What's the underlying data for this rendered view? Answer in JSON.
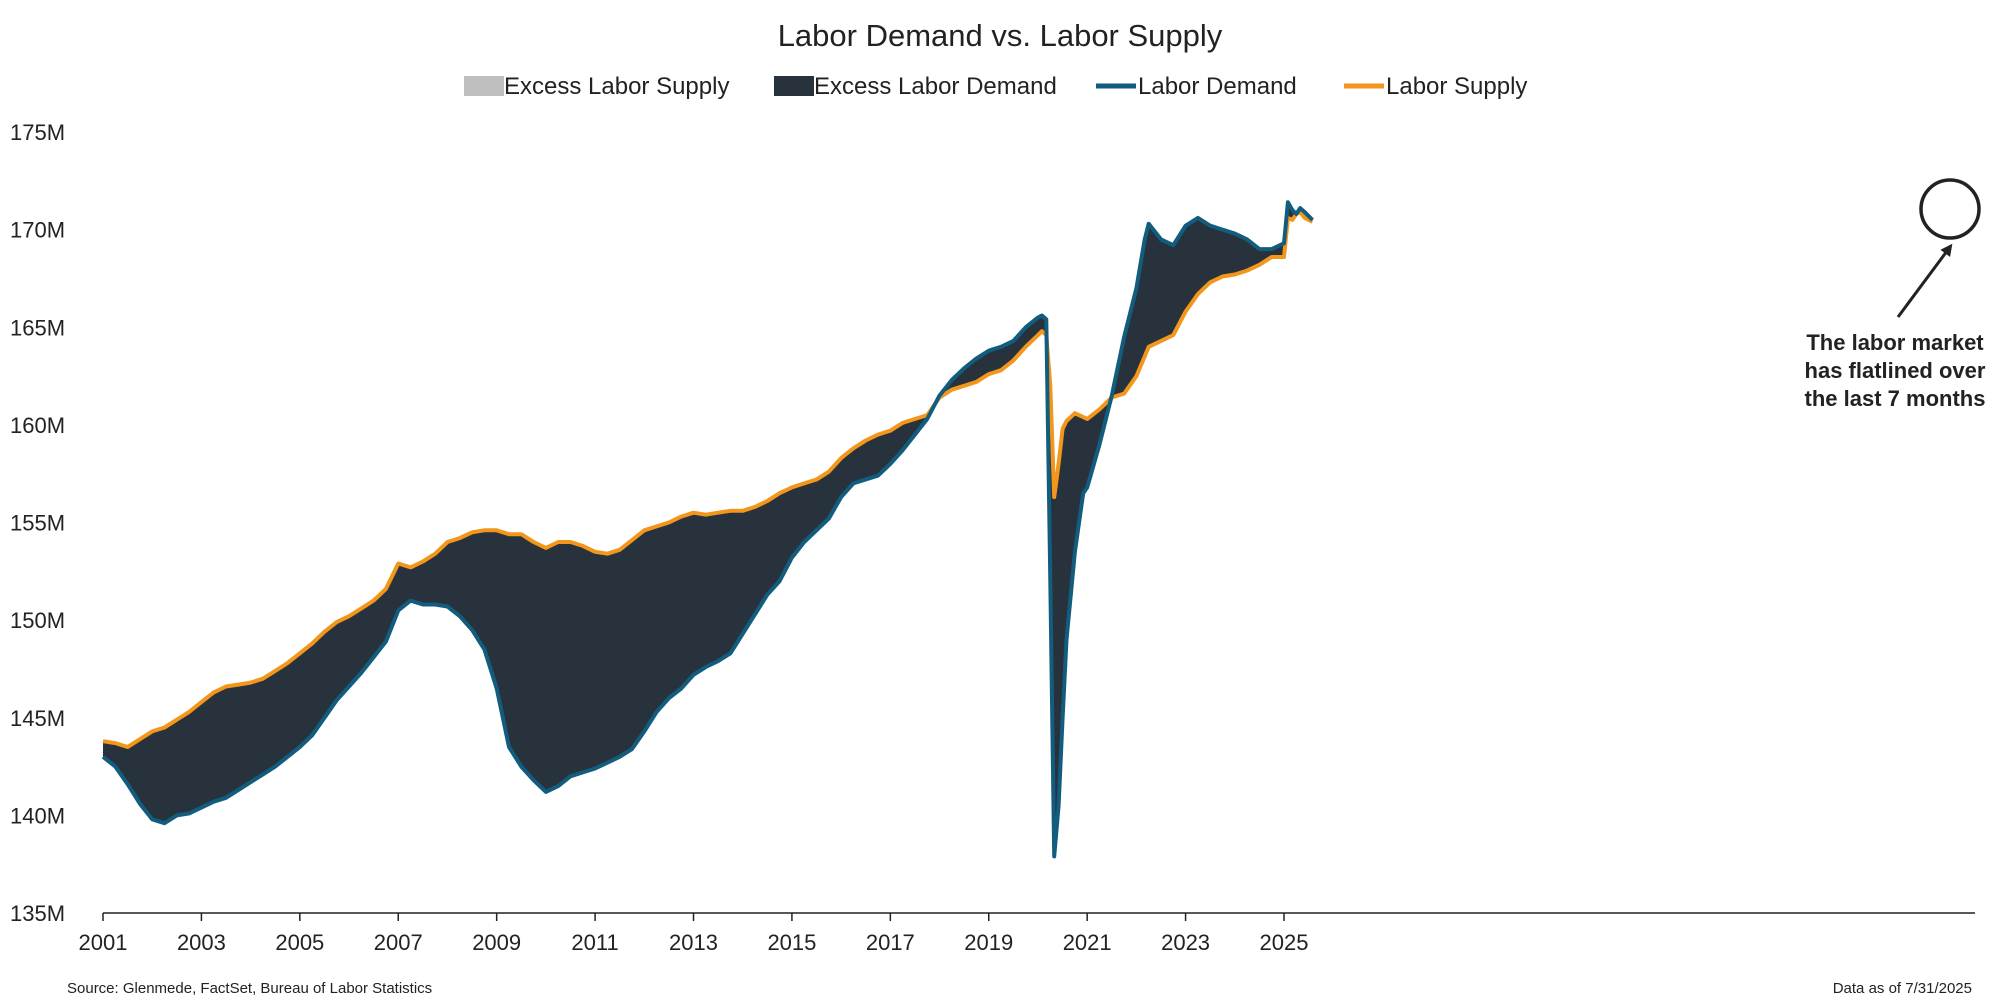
{
  "chart_data": {
    "type": "area",
    "title": "Labor Demand vs. Labor Supply",
    "xlabel": "",
    "ylabel": "",
    "xlim": [
      2001.0,
      2025.65
    ],
    "ylim": [
      135,
      175
    ],
    "y_ticks": [
      135,
      140,
      145,
      150,
      155,
      160,
      165,
      170,
      175
    ],
    "y_tick_labels": [
      "135M",
      "140M",
      "145M",
      "150M",
      "155M",
      "160M",
      "165M",
      "170M",
      "175M"
    ],
    "x_ticks": [
      2001,
      2003,
      2005,
      2007,
      2009,
      2011,
      2013,
      2015,
      2017,
      2019,
      2021,
      2023,
      2025
    ],
    "x_tick_labels": [
      "2001",
      "2003",
      "2005",
      "2007",
      "2009",
      "2011",
      "2013",
      "2015",
      "2017",
      "2019",
      "2021",
      "2023",
      "2025"
    ],
    "legend_position": "top-center",
    "legend": [
      {
        "label": "Excess Labor Supply",
        "kind": "area",
        "color": "#bfbfbf"
      },
      {
        "label": "Excess Labor Demand",
        "kind": "area",
        "color": "#27323d"
      },
      {
        "label": "Labor Demand",
        "kind": "line",
        "color": "#125d7e"
      },
      {
        "label": "Labor Supply",
        "kind": "line",
        "color": "#f3961c"
      }
    ],
    "series": [
      {
        "name": "Labor Demand",
        "color": "#125d7e",
        "points": [
          [
            2001.0,
            143.0
          ],
          [
            2001.25,
            142.5
          ],
          [
            2001.5,
            141.6
          ],
          [
            2001.75,
            140.6
          ],
          [
            2002.0,
            139.8
          ],
          [
            2002.25,
            139.6
          ],
          [
            2002.5,
            140.0
          ],
          [
            2002.75,
            140.1
          ],
          [
            2003.0,
            140.4
          ],
          [
            2003.25,
            140.7
          ],
          [
            2003.5,
            140.9
          ],
          [
            2003.75,
            141.3
          ],
          [
            2004.0,
            141.7
          ],
          [
            2004.25,
            142.1
          ],
          [
            2004.5,
            142.5
          ],
          [
            2004.75,
            143.0
          ],
          [
            2005.0,
            143.5
          ],
          [
            2005.25,
            144.1
          ],
          [
            2005.5,
            145.0
          ],
          [
            2005.75,
            145.9
          ],
          [
            2006.0,
            146.6
          ],
          [
            2006.25,
            147.3
          ],
          [
            2006.5,
            148.1
          ],
          [
            2006.75,
            148.9
          ],
          [
            2007.0,
            150.5
          ],
          [
            2007.25,
            151.0
          ],
          [
            2007.5,
            150.8
          ],
          [
            2007.75,
            150.8
          ],
          [
            2008.0,
            150.7
          ],
          [
            2008.25,
            150.2
          ],
          [
            2008.5,
            149.5
          ],
          [
            2008.75,
            148.5
          ],
          [
            2009.0,
            146.5
          ],
          [
            2009.25,
            143.5
          ],
          [
            2009.5,
            142.5
          ],
          [
            2009.75,
            141.8
          ],
          [
            2010.0,
            141.2
          ],
          [
            2010.25,
            141.5
          ],
          [
            2010.5,
            142.0
          ],
          [
            2010.75,
            142.2
          ],
          [
            2011.0,
            142.4
          ],
          [
            2011.25,
            142.7
          ],
          [
            2011.5,
            143.0
          ],
          [
            2011.75,
            143.4
          ],
          [
            2012.0,
            144.3
          ],
          [
            2012.25,
            145.3
          ],
          [
            2012.5,
            146.0
          ],
          [
            2012.75,
            146.5
          ],
          [
            2013.0,
            147.2
          ],
          [
            2013.25,
            147.6
          ],
          [
            2013.5,
            147.9
          ],
          [
            2013.75,
            148.3
          ],
          [
            2014.0,
            149.3
          ],
          [
            2014.25,
            150.3
          ],
          [
            2014.5,
            151.3
          ],
          [
            2014.75,
            152.0
          ],
          [
            2015.0,
            153.2
          ],
          [
            2015.25,
            154.0
          ],
          [
            2015.5,
            154.6
          ],
          [
            2015.75,
            155.2
          ],
          [
            2016.0,
            156.3
          ],
          [
            2016.25,
            157.0
          ],
          [
            2016.5,
            157.2
          ],
          [
            2016.75,
            157.4
          ],
          [
            2017.0,
            158.0
          ],
          [
            2017.25,
            158.7
          ],
          [
            2017.5,
            159.5
          ],
          [
            2017.75,
            160.3
          ],
          [
            2018.0,
            161.5
          ],
          [
            2018.25,
            162.3
          ],
          [
            2018.5,
            162.9
          ],
          [
            2018.75,
            163.4
          ],
          [
            2019.0,
            163.8
          ],
          [
            2019.25,
            164.0
          ],
          [
            2019.5,
            164.3
          ],
          [
            2019.75,
            165.0
          ],
          [
            2020.0,
            165.5
          ],
          [
            2020.08,
            165.6
          ],
          [
            2020.17,
            165.4
          ],
          [
            2020.25,
            152.0
          ],
          [
            2020.33,
            137.9
          ],
          [
            2020.42,
            140.5
          ],
          [
            2020.5,
            145.0
          ],
          [
            2020.58,
            149.0
          ],
          [
            2020.75,
            153.5
          ],
          [
            2020.92,
            156.5
          ],
          [
            2021.0,
            156.8
          ],
          [
            2021.25,
            159.0
          ],
          [
            2021.5,
            161.5
          ],
          [
            2021.75,
            164.5
          ],
          [
            2022.0,
            167.0
          ],
          [
            2022.17,
            169.5
          ],
          [
            2022.25,
            170.3
          ],
          [
            2022.5,
            169.5
          ],
          [
            2022.75,
            169.2
          ],
          [
            2023.0,
            170.2
          ],
          [
            2023.25,
            170.6
          ],
          [
            2023.5,
            170.2
          ],
          [
            2023.75,
            170.0
          ],
          [
            2024.0,
            169.8
          ],
          [
            2024.25,
            169.5
          ],
          [
            2024.5,
            169.0
          ],
          [
            2024.75,
            169.0
          ],
          [
            2025.0,
            169.3
          ],
          [
            2025.08,
            171.4
          ],
          [
            2025.17,
            171.0
          ],
          [
            2025.25,
            170.8
          ],
          [
            2025.33,
            171.1
          ],
          [
            2025.42,
            170.9
          ],
          [
            2025.5,
            170.7
          ],
          [
            2025.58,
            170.5
          ]
        ]
      },
      {
        "name": "Labor Supply",
        "color": "#f3961c",
        "points": [
          [
            2001.0,
            143.8
          ],
          [
            2001.25,
            143.7
          ],
          [
            2001.5,
            143.5
          ],
          [
            2001.75,
            143.9
          ],
          [
            2002.0,
            144.3
          ],
          [
            2002.25,
            144.5
          ],
          [
            2002.5,
            144.9
          ],
          [
            2002.75,
            145.3
          ],
          [
            2003.0,
            145.8
          ],
          [
            2003.25,
            146.3
          ],
          [
            2003.5,
            146.6
          ],
          [
            2003.75,
            146.7
          ],
          [
            2004.0,
            146.8
          ],
          [
            2004.25,
            147.0
          ],
          [
            2004.5,
            147.4
          ],
          [
            2004.75,
            147.8
          ],
          [
            2005.0,
            148.3
          ],
          [
            2005.25,
            148.8
          ],
          [
            2005.5,
            149.4
          ],
          [
            2005.75,
            149.9
          ],
          [
            2006.0,
            150.2
          ],
          [
            2006.25,
            150.6
          ],
          [
            2006.5,
            151.0
          ],
          [
            2006.75,
            151.6
          ],
          [
            2007.0,
            152.9
          ],
          [
            2007.25,
            152.7
          ],
          [
            2007.5,
            153.0
          ],
          [
            2007.75,
            153.4
          ],
          [
            2008.0,
            154.0
          ],
          [
            2008.25,
            154.2
          ],
          [
            2008.5,
            154.5
          ],
          [
            2008.75,
            154.6
          ],
          [
            2009.0,
            154.6
          ],
          [
            2009.25,
            154.4
          ],
          [
            2009.5,
            154.4
          ],
          [
            2009.75,
            154.0
          ],
          [
            2010.0,
            153.7
          ],
          [
            2010.25,
            154.0
          ],
          [
            2010.5,
            154.0
          ],
          [
            2010.75,
            153.8
          ],
          [
            2011.0,
            153.5
          ],
          [
            2011.25,
            153.4
          ],
          [
            2011.5,
            153.6
          ],
          [
            2011.75,
            154.1
          ],
          [
            2012.0,
            154.6
          ],
          [
            2012.25,
            154.8
          ],
          [
            2012.5,
            155.0
          ],
          [
            2012.75,
            155.3
          ],
          [
            2013.0,
            155.5
          ],
          [
            2013.25,
            155.4
          ],
          [
            2013.5,
            155.5
          ],
          [
            2013.75,
            155.6
          ],
          [
            2014.0,
            155.6
          ],
          [
            2014.25,
            155.8
          ],
          [
            2014.5,
            156.1
          ],
          [
            2014.75,
            156.5
          ],
          [
            2015.0,
            156.8
          ],
          [
            2015.25,
            157.0
          ],
          [
            2015.5,
            157.2
          ],
          [
            2015.75,
            157.6
          ],
          [
            2016.0,
            158.3
          ],
          [
            2016.25,
            158.8
          ],
          [
            2016.5,
            159.2
          ],
          [
            2016.75,
            159.5
          ],
          [
            2017.0,
            159.7
          ],
          [
            2017.25,
            160.1
          ],
          [
            2017.5,
            160.3
          ],
          [
            2017.75,
            160.5
          ],
          [
            2018.0,
            161.4
          ],
          [
            2018.25,
            161.8
          ],
          [
            2018.5,
            162.0
          ],
          [
            2018.75,
            162.2
          ],
          [
            2019.0,
            162.6
          ],
          [
            2019.25,
            162.8
          ],
          [
            2019.5,
            163.3
          ],
          [
            2019.75,
            164.0
          ],
          [
            2020.0,
            164.6
          ],
          [
            2020.08,
            164.8
          ],
          [
            2020.17,
            164.6
          ],
          [
            2020.25,
            162.0
          ],
          [
            2020.33,
            156.3
          ],
          [
            2020.42,
            158.0
          ],
          [
            2020.5,
            159.8
          ],
          [
            2020.58,
            160.2
          ],
          [
            2020.75,
            160.6
          ],
          [
            2020.92,
            160.4
          ],
          [
            2021.0,
            160.3
          ],
          [
            2021.25,
            160.8
          ],
          [
            2021.5,
            161.4
          ],
          [
            2021.75,
            161.6
          ],
          [
            2022.0,
            162.5
          ],
          [
            2022.17,
            163.5
          ],
          [
            2022.25,
            164.0
          ],
          [
            2022.5,
            164.3
          ],
          [
            2022.75,
            164.6
          ],
          [
            2023.0,
            165.8
          ],
          [
            2023.25,
            166.7
          ],
          [
            2023.5,
            167.3
          ],
          [
            2023.75,
            167.6
          ],
          [
            2024.0,
            167.7
          ],
          [
            2024.25,
            167.9
          ],
          [
            2024.5,
            168.2
          ],
          [
            2024.75,
            168.6
          ],
          [
            2025.0,
            168.6
          ],
          [
            2025.08,
            170.6
          ],
          [
            2025.17,
            170.5
          ],
          [
            2025.25,
            170.8
          ],
          [
            2025.33,
            170.9
          ],
          [
            2025.42,
            170.6
          ],
          [
            2025.5,
            170.5
          ],
          [
            2025.58,
            170.4
          ]
        ]
      }
    ],
    "annotation": {
      "lines": [
        "The labor market",
        "has flatlined over",
        "the last 7 months"
      ]
    },
    "source_note": "Source: Glenmede, FactSet, Bureau of Labor Statistics",
    "date_note": "Data as of 7/31/2025"
  }
}
